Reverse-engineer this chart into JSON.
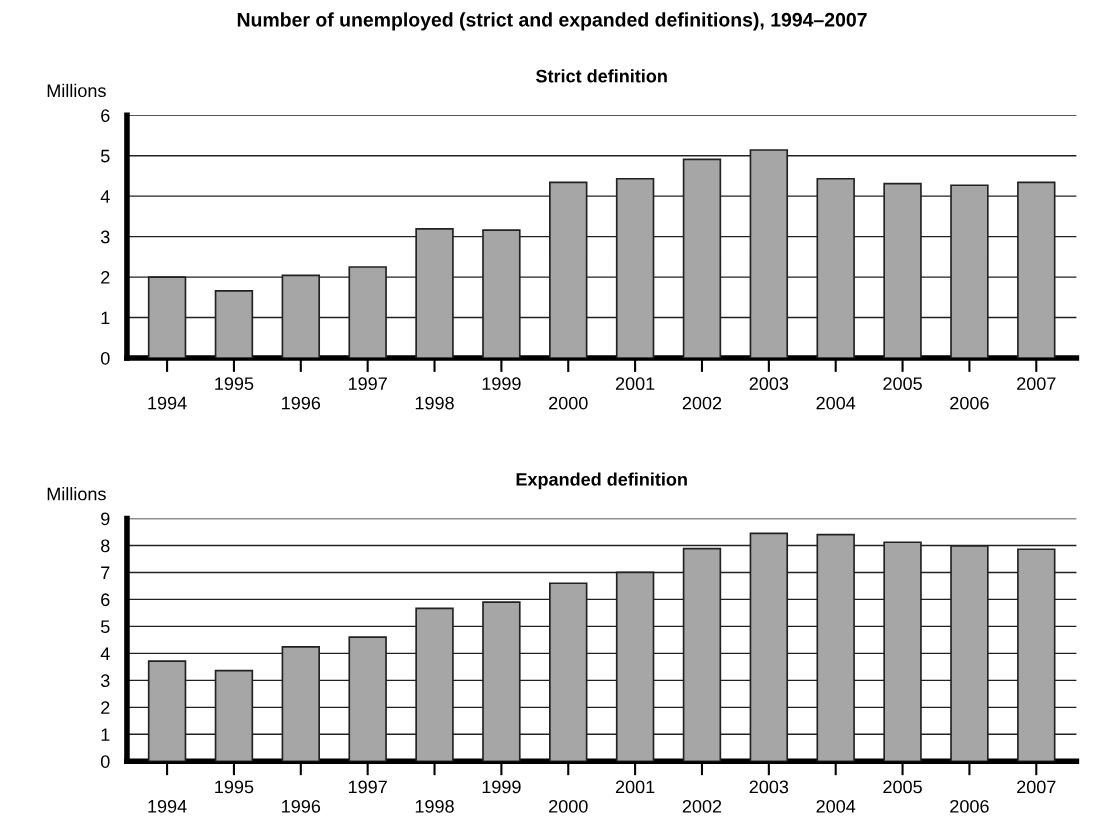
{
  "chart_data": [
    {
      "type": "bar",
      "title": "Number of unemployed (strict and expanded definitions), 1994–2007",
      "subtitle": "Strict definition",
      "ylabel": "Millions",
      "categories": [
        "1994",
        "1995",
        "1996",
        "1997",
        "1998",
        "1999",
        "2000",
        "2001",
        "2002",
        "2003",
        "2004",
        "2005",
        "2006",
        "2007"
      ],
      "values": [
        2.0,
        1.66,
        2.04,
        2.25,
        3.19,
        3.16,
        4.34,
        4.43,
        4.91,
        5.14,
        4.43,
        4.31,
        4.27,
        4.34
      ],
      "color": "#a6a6a6",
      "ylim": [
        0,
        6
      ],
      "yticks": [
        0,
        1,
        2,
        3,
        4,
        5,
        6
      ],
      "grid": "y"
    },
    {
      "type": "bar",
      "subtitle": "Expanded definition",
      "ylabel": "Millions",
      "categories": [
        "1994",
        "1995",
        "1996",
        "1997",
        "1998",
        "1999",
        "2000",
        "2001",
        "2002",
        "2003",
        "2004",
        "2005",
        "2006",
        "2007"
      ],
      "values": [
        3.71,
        3.36,
        4.24,
        4.6,
        5.67,
        5.9,
        6.6,
        7.0,
        7.88,
        8.45,
        8.4,
        8.12,
        7.98,
        7.86
      ],
      "color": "#a6a6a6",
      "ylim": [
        0,
        9
      ],
      "yticks": [
        0,
        1,
        2,
        3,
        4,
        5,
        6,
        7,
        8,
        9
      ],
      "grid": "y"
    }
  ]
}
